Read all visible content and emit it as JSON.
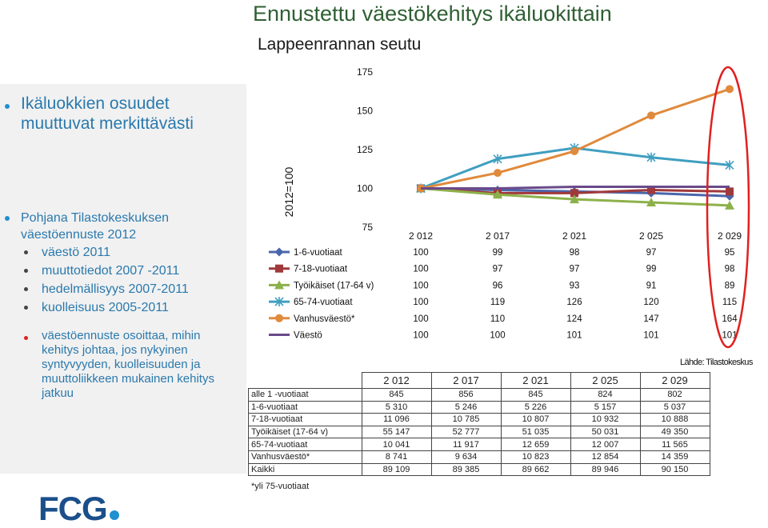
{
  "header": {
    "title": "Ennustettu väestökehitys ikäluokittain",
    "subtitle": "Lappeenrannan seutu"
  },
  "sidebar": {
    "heading": [
      "Ikäluokkien osuudet",
      "muuttuvat merkittävästi"
    ],
    "source_lines": [
      "Pohjana Tilastokeskuksen",
      "väestöennuste 2012"
    ],
    "items": [
      "väestö 2011",
      "muuttotiedot 2007 -2011",
      "hedelmällisyys 2007-2011",
      "kuolleisuus 2005-2011"
    ],
    "note_lines": [
      "väestöennuste osoittaa, mihin",
      "kehitys johtaa, jos nykyinen",
      "syntyvyyden, kuolleisuuden ja",
      "muuttoliikkeen mukainen kehitys",
      "jatkuu"
    ]
  },
  "chart_data": {
    "type": "line",
    "ylabel": "2012=100",
    "ylim": [
      75,
      175
    ],
    "yticks": [
      75,
      100,
      125,
      150,
      175
    ],
    "x": [
      "2 012",
      "2 017",
      "2 021",
      "2 025",
      "2 029"
    ],
    "legend": "table-below",
    "series": [
      {
        "name": "1-6-vuotiaat",
        "color": "#4a66ac",
        "marker": "diamond",
        "values": [
          100,
          99,
          98,
          97,
          95
        ]
      },
      {
        "name": "7-18-vuotiaat",
        "color": "#a0393a",
        "marker": "square",
        "values": [
          100,
          97,
          97,
          99,
          98
        ]
      },
      {
        "name": "Työikäiset (17-64 v)",
        "color": "#8db14a",
        "marker": "triangle",
        "values": [
          100,
          96,
          93,
          91,
          89
        ]
      },
      {
        "name": "65-74-vuotiaat",
        "color": "#3f9fc0",
        "marker": "star",
        "values": [
          100,
          119,
          126,
          120,
          115
        ]
      },
      {
        "name": "Vanhusväestö*",
        "color": "#e08a3c",
        "marker": "circle",
        "values": [
          100,
          110,
          124,
          147,
          164
        ]
      },
      {
        "name": "Väestö",
        "color": "#6a4a8a",
        "marker": "none",
        "values": [
          100,
          100,
          101,
          101,
          101
        ]
      }
    ]
  },
  "source_label": "Lähde: Tilastokeskus",
  "abs_table": {
    "headers": [
      "2 012",
      "2 017",
      "2 021",
      "2 025",
      "2 029"
    ],
    "rows": [
      {
        "label": "alle 1 -vuotiaat",
        "values": [
          "845",
          "856",
          "845",
          "824",
          "802"
        ]
      },
      {
        "label": "1-6-vuotiaat",
        "values": [
          "5 310",
          "5 246",
          "5 226",
          "5 157",
          "5 037"
        ]
      },
      {
        "label": "7-18-vuotiaat",
        "values": [
          "11 096",
          "10 785",
          "10 807",
          "10 932",
          "10 888"
        ]
      },
      {
        "label": "Työikäiset (17-64 v)",
        "values": [
          "55 147",
          "52 777",
          "51 035",
          "50 031",
          "49 350"
        ]
      },
      {
        "label": "65-74-vuotiaat",
        "values": [
          "10 041",
          "11 917",
          "12 659",
          "12 007",
          "11 565"
        ]
      },
      {
        "label": "Vanhusväestö*",
        "values": [
          "8 741",
          "9 634",
          "10 823",
          "12 854",
          "14 359"
        ]
      },
      {
        "label": "Kaikki",
        "values": [
          "89 109",
          "89 385",
          "89 662",
          "89 946",
          "90 150"
        ]
      }
    ]
  },
  "footnote": "*yli 75-vuotiaat",
  "logo": "FCG",
  "colors": {
    "title": "#2f5f33",
    "sidebar_text": "#2a79ad",
    "highlight": "#e02020",
    "logo": "#1a4f8a",
    "logo_dot": "#1f8fd0"
  }
}
